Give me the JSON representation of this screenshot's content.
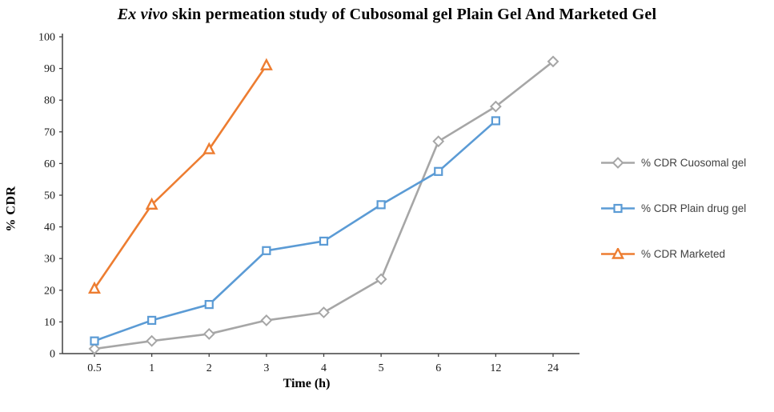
{
  "chart_data": {
    "type": "line",
    "title": "Ex vivo skin permeation study of Cubosomal gel Plain Gel And Marketed Gel",
    "title_italic": "Ex vivo",
    "title_rest": " skin permeation study of Cubosomal gel Plain Gel And Marketed Gel",
    "xlabel": "Time  (h)",
    "ylabel": "% CDR",
    "categories": [
      "0.5",
      "1",
      "2",
      "3",
      "4",
      "5",
      "6",
      "12",
      "24"
    ],
    "ylim": [
      0,
      100
    ],
    "ytick_step": 10,
    "grid": false,
    "legend_position": "right",
    "axis_color": "#404040",
    "series": [
      {
        "name": "% CDR Cuosomal gel",
        "color": "#A6A6A6",
        "marker": "diamond",
        "values": [
          1.5,
          4,
          6.2,
          10.5,
          13,
          23.5,
          67,
          78,
          92.2
        ]
      },
      {
        "name": "% CDR Plain drug gel",
        "color": "#5B9BD5",
        "marker": "square",
        "values": [
          4,
          10.5,
          15.5,
          32.5,
          35.5,
          47,
          57.5,
          73.5,
          null
        ]
      },
      {
        "name": "% CDR Marketed",
        "color": "#ED7D31",
        "marker": "triangle",
        "values": [
          20.5,
          47,
          64.5,
          91,
          null,
          null,
          null,
          null,
          null
        ]
      }
    ]
  }
}
